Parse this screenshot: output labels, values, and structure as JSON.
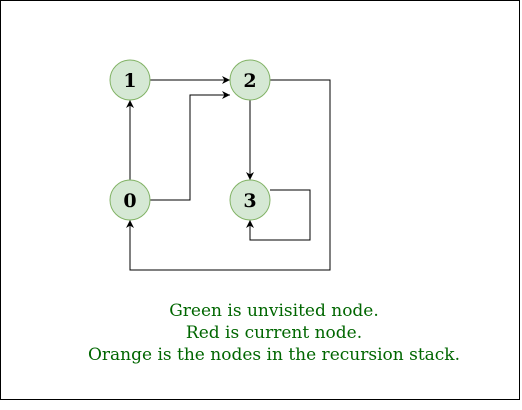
{
  "colors": {
    "node_fill": "#d5e8d4",
    "node_stroke": "#82b366",
    "edge": "#000000",
    "legend_text": "#006600"
  },
  "nodes": [
    {
      "id": "node-1",
      "label": "1"
    },
    {
      "id": "node-2",
      "label": "2"
    },
    {
      "id": "node-0",
      "label": "0"
    },
    {
      "id": "node-3",
      "label": "3"
    }
  ],
  "edges": [
    {
      "from": "0",
      "to": "1"
    },
    {
      "from": "0",
      "to": "2"
    },
    {
      "from": "1",
      "to": "2"
    },
    {
      "from": "2",
      "to": "3"
    },
    {
      "from": "2",
      "to": "0"
    },
    {
      "from": "3",
      "to": "3"
    }
  ],
  "legend": {
    "line1": "Green is unvisited node.",
    "line2": "Red is current node.",
    "line3": "Orange is the nodes in the recursion stack."
  }
}
